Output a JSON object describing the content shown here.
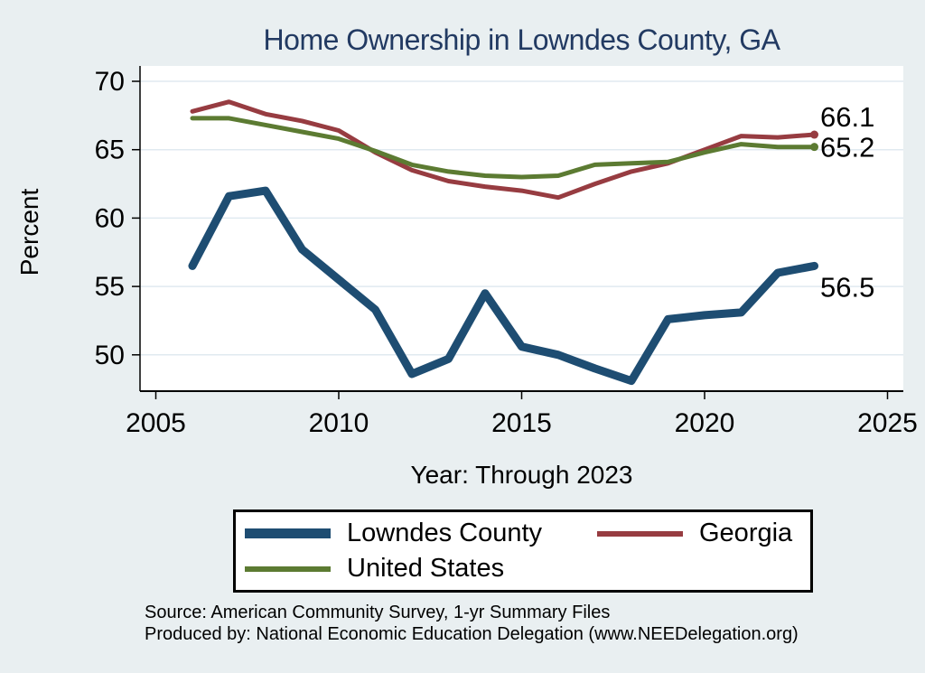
{
  "page": {
    "background": "#e9eff1",
    "plot_background": "#ffffff",
    "gridline_color": "#e0eaf0",
    "axis_color": "#000000"
  },
  "chart": {
    "title": "Home Ownership in Lowndes County, GA",
    "title_color": "#223a62",
    "xlabel": "Year: Through 2023",
    "ylabel": "Percent",
    "source_line1": "Source: American Community Survey, 1-yr Summary Files",
    "source_line2": "Produced by: National Economic Education Delegation (www.NEEDelegation.org)"
  },
  "chart_data": {
    "type": "line",
    "title": "Home Ownership in Lowndes County, GA",
    "xlabel": "Year: Through 2023",
    "ylabel": "Percent",
    "grid": "horizontal",
    "legend_position": "bottom",
    "xlim": [
      2004.57,
      2025.43
    ],
    "ylim": [
      47.3,
      71.1
    ],
    "xticks": [
      2005,
      2010,
      2015,
      2020,
      2025
    ],
    "yticks": [
      50,
      55,
      60,
      65,
      70
    ],
    "x": [
      2006,
      2007,
      2008,
      2009,
      2010,
      2011,
      2012,
      2013,
      2014,
      2015,
      2016,
      2017,
      2018,
      2019,
      2020,
      2021,
      2022,
      2023
    ],
    "series": [
      {
        "name": "Lowndes County",
        "color": "#1e4d72",
        "line_width": 9,
        "end_label": "56.5",
        "end_dot": false,
        "values": [
          56.5,
          61.6,
          62.0,
          57.7,
          55.5,
          53.3,
          48.6,
          49.7,
          54.5,
          50.6,
          50.0,
          49.0,
          48.1,
          52.6,
          52.9,
          53.1,
          56.0,
          56.5
        ]
      },
      {
        "name": "Georgia",
        "color": "#973c41",
        "line_width": 5,
        "end_label": "66.1",
        "end_dot": true,
        "values": [
          67.8,
          68.5,
          67.6,
          67.1,
          66.4,
          64.8,
          63.5,
          62.7,
          62.3,
          62.0,
          61.5,
          62.5,
          63.4,
          64.0,
          65.0,
          66.0,
          65.9,
          66.1
        ]
      },
      {
        "name": "United States",
        "color": "#5c7b32",
        "line_width": 5,
        "end_label": "65.2",
        "end_dot": true,
        "values": [
          67.3,
          67.3,
          66.8,
          66.3,
          65.8,
          64.9,
          63.9,
          63.4,
          63.1,
          63.0,
          63.1,
          63.9,
          64.0,
          64.1,
          64.8,
          65.4,
          65.2,
          65.2
        ]
      }
    ]
  },
  "legend": {
    "items": [
      {
        "label": "Lowndes County",
        "color": "#1e4d72"
      },
      {
        "label": "Georgia",
        "color": "#973c41"
      },
      {
        "label": "United States",
        "color": "#5c7b32"
      }
    ]
  }
}
